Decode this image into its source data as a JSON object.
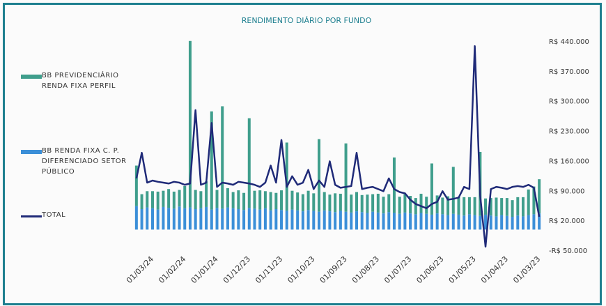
{
  "chart_data": {
    "type": "stacked_bar_line",
    "title": "RENDIMENTO DIÁRIO POR FUNDO",
    "categories": [
      null,
      null,
      null,
      "01/03/24",
      null,
      null,
      null,
      null,
      null,
      "01/02/24",
      null,
      null,
      null,
      null,
      null,
      "01/01/24",
      null,
      null,
      null,
      null,
      null,
      "01/12/23",
      null,
      null,
      null,
      null,
      null,
      "01/11/23",
      null,
      null,
      null,
      null,
      null,
      "01/10/23",
      null,
      null,
      null,
      null,
      null,
      "01/09/23",
      null,
      null,
      null,
      null,
      null,
      "01/08/23",
      null,
      null,
      null,
      null,
      null,
      "01/07/23",
      null,
      null,
      null,
      null,
      null,
      "01/06/23",
      null,
      null,
      null,
      null,
      null,
      "01/05/23",
      null,
      null,
      null,
      null,
      null,
      "01/04/23",
      null,
      null,
      null,
      null,
      null,
      "01/03/23"
    ],
    "series": [
      {
        "name": "BB PREVIDENCIÁRIO RENDA FIXA PERFIL",
        "color": "#3f9e8c",
        "kind": "bar",
        "values": [
          95000,
          35000,
          38000,
          40000,
          42000,
          38000,
          44000,
          40000,
          39000,
          52000,
          390000,
          45000,
          40000,
          60000,
          230000,
          42000,
          240000,
          45000,
          38000,
          44000,
          40000,
          210000,
          42000,
          45000,
          40000,
          43000,
          38000,
          46000,
          160000,
          44000,
          42000,
          40000,
          45000,
          41000,
          170000,
          43000,
          39000,
          44000,
          40000,
          160000,
          42000,
          45000,
          40000,
          43000,
          41000,
          44000,
          39000,
          42000,
          130000,
          40000,
          43000,
          41000,
          38000,
          45000,
          40000,
          120000,
          42000,
          39000,
          44000,
          110000,
          41000,
          43000,
          40000,
          42000,
          150000,
          38000,
          41000,
          44000,
          40000,
          42000,
          39000,
          43000,
          45000,
          60000,
          65000,
          80000
        ]
      },
      {
        "name": "BB RENDA FIXA C. P. DIFERENCIADO SETOR PÚBLICO",
        "color": "#3b8fd8",
        "kind": "bar",
        "values": [
          55000,
          48000,
          52000,
          50000,
          47000,
          53000,
          51000,
          49000,
          54000,
          50000,
          52000,
          48000,
          50000,
          53000,
          47000,
          51000,
          49000,
          52000,
          50000,
          48000,
          46000,
          51000,
          49000,
          47000,
          50000,
          45000,
          48000,
          46000,
          44000,
          47000,
          45000,
          43000,
          46000,
          44000,
          42000,
          45000,
          43000,
          41000,
          44000,
          42000,
          40000,
          43000,
          41000,
          39000,
          42000,
          40000,
          38000,
          41000,
          39000,
          37000,
          40000,
          38000,
          36000,
          39000,
          37000,
          35000,
          38000,
          36000,
          34000,
          37000,
          35000,
          33000,
          36000,
          34000,
          32000,
          35000,
          33000,
          31000,
          34000,
          32000,
          30000,
          33000,
          31000,
          34000,
          36000,
          38000
        ]
      },
      {
        "name": "TOTAL",
        "color": "#1f2a78",
        "kind": "line",
        "values": [
          120000,
          180000,
          110000,
          115000,
          112000,
          110000,
          108000,
          112000,
          110000,
          105000,
          108000,
          280000,
          105000,
          110000,
          250000,
          100000,
          110000,
          108000,
          105000,
          112000,
          110000,
          108000,
          105000,
          100000,
          110000,
          150000,
          110000,
          210000,
          100000,
          125000,
          105000,
          110000,
          140000,
          95000,
          115000,
          100000,
          160000,
          105000,
          98000,
          100000,
          102000,
          180000,
          95000,
          98000,
          100000,
          95000,
          90000,
          120000,
          95000,
          88000,
          85000,
          70000,
          60000,
          55000,
          50000,
          60000,
          65000,
          90000,
          70000,
          72000,
          75000,
          100000,
          95000,
          430000,
          80000,
          -40000,
          95000,
          100000,
          98000,
          95000,
          100000,
          102000,
          100000,
          105000,
          98000,
          30000
        ]
      }
    ],
    "ylim": [
      -50000,
      440000
    ],
    "yticks": [
      {
        "value": 440000,
        "label": "R$ 440.000"
      },
      {
        "value": 370000,
        "label": "R$ 370.000"
      },
      {
        "value": 300000,
        "label": "R$ 300.000"
      },
      {
        "value": 230000,
        "label": "R$ 230.000"
      },
      {
        "value": 160000,
        "label": "R$ 160.000"
      },
      {
        "value": 90000,
        "label": "R$ 90.000"
      },
      {
        "value": 20000,
        "label": "R$ 20.000"
      },
      {
        "value": -50000,
        "label": "-R$ 50.000"
      }
    ],
    "legend": "left"
  }
}
